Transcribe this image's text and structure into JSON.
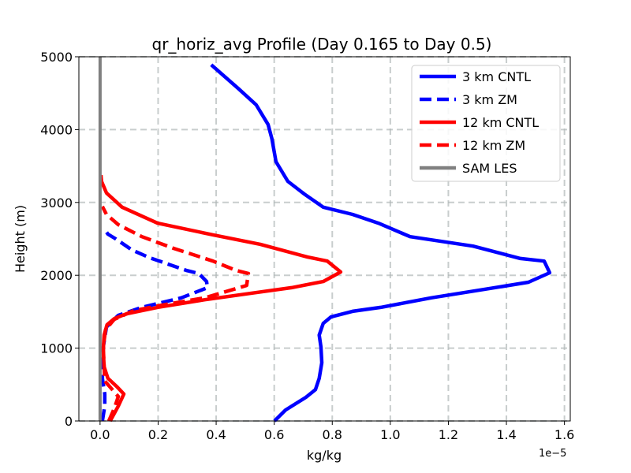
{
  "chart_data": {
    "type": "line",
    "title": "qr_horiz_avg Profile (Day 0.165 to Day 0.5)",
    "xlabel": "kg/kg",
    "ylabel": "Height (m)",
    "x_offset_text": "1e−5",
    "xlim": [
      -0.073,
      1.62
    ],
    "ylim": [
      0,
      5000
    ],
    "xticks": [
      "0.0",
      "0.2",
      "0.4",
      "0.6",
      "0.8",
      "1.0",
      "1.2",
      "1.4",
      "1.6"
    ],
    "xtick_values": [
      0,
      0.2,
      0.4,
      0.6,
      0.8,
      1.0,
      1.2,
      1.4,
      1.6
    ],
    "yticks": [
      "0",
      "1000",
      "2000",
      "3000",
      "4000",
      "5000"
    ],
    "ytick_values": [
      0,
      1000,
      2000,
      3000,
      4000,
      5000
    ],
    "grid": true,
    "legend_position": "top-right",
    "series": [
      {
        "name": "3 km CNTL",
        "color": "#0000ff",
        "style": "solid",
        "x": [
          0.601,
          0.639,
          0.709,
          0.742,
          0.755,
          0.764,
          0.761,
          0.755,
          0.769,
          0.796,
          0.87,
          0.967,
          1.141,
          1.313,
          1.476,
          1.549,
          1.53,
          1.448,
          1.285,
          1.068,
          0.959,
          0.87,
          0.769,
          0.704,
          0.647,
          0.606,
          0.592,
          0.579,
          0.538,
          0.476,
          0.383
        ],
        "y": [
          0,
          150,
          325,
          430,
          585,
          800,
          1015,
          1180,
          1340,
          1430,
          1505,
          1560,
          1690,
          1800,
          1905,
          2035,
          2195,
          2230,
          2400,
          2530,
          2715,
          2835,
          2935,
          3115,
          3290,
          3560,
          3875,
          4070,
          4340,
          4565,
          4890
        ]
      },
      {
        "name": "3 km ZM",
        "color": "#0000ff",
        "style": "dashed",
        "x": [
          0.008,
          0.016,
          0.016,
          0.008,
          0.011,
          0.022,
          0.063,
          0.144,
          0.28,
          0.37,
          0.367,
          0.34,
          0.299,
          0.171,
          0.109,
          0.054,
          0.027,
          0.014
        ],
        "y": [
          0,
          205,
          370,
          585,
          1015,
          1290,
          1450,
          1560,
          1690,
          1830,
          1915,
          2025,
          2065,
          2240,
          2350,
          2500,
          2565,
          2640
        ]
      },
      {
        "name": "12 km CNTL",
        "color": "#ff0000",
        "style": "solid",
        "x": [
          0.035,
          0.063,
          0.082,
          0.057,
          0.027,
          0.014,
          0.011,
          0.014,
          0.024,
          0.049,
          0.09,
          0.198,
          0.361,
          0.524,
          0.66,
          0.769,
          0.829,
          0.783,
          0.715,
          0.552,
          0.389,
          0.198,
          0.076,
          0.022,
          0.005,
          0.003
        ],
        "y": [
          0,
          205,
          370,
          475,
          585,
          745,
          965,
          1180,
          1320,
          1405,
          1470,
          1560,
          1665,
          1755,
          1830,
          1915,
          2045,
          2195,
          2250,
          2425,
          2555,
          2715,
          2935,
          3130,
          3290,
          3375
        ]
      },
      {
        "name": "12 km ZM",
        "color": "#ff0000",
        "style": "dashed",
        "x": [
          0.03,
          0.049,
          0.063,
          0.016,
          0.011,
          0.019,
          0.049,
          0.117,
          0.226,
          0.361,
          0.505,
          0.511,
          0.47,
          0.389,
          0.253,
          0.144,
          0.063,
          0.022,
          0.008
        ],
        "y": [
          0,
          173,
          335,
          550,
          1015,
          1255,
          1395,
          1515,
          1600,
          1690,
          1860,
          2025,
          2065,
          2195,
          2370,
          2530,
          2695,
          2835,
          2945
        ]
      },
      {
        "name": "SAM LES",
        "color": "#808080",
        "style": "solid",
        "x": [
          0,
          0
        ],
        "y": [
          0,
          5000
        ]
      }
    ]
  }
}
